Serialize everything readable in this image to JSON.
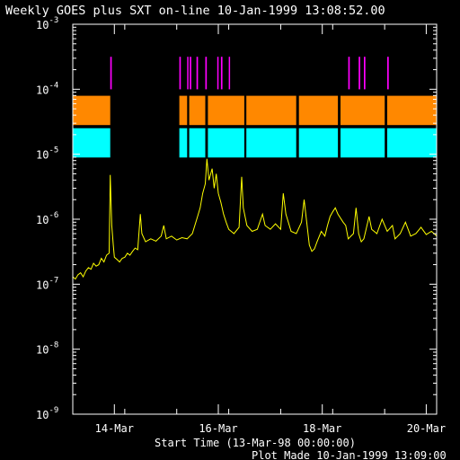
{
  "window": {
    "title": "Weekly GOES plus SXT on-line 10-Jan-1999 13:08:52.00",
    "start_time_label": "Start Time (13-Mar-98 00:00:00)",
    "plot_made_label": "Plot Made 10-Jan-1999 13:09:00"
  },
  "colors": {
    "background": "#000000",
    "axes": "#ffffff",
    "goes_flux": "#ffff00",
    "sxt_magenta": "#ff00ff",
    "sxt_orange": "#ff8800",
    "sxt_cyan": "#00ffff"
  },
  "chart_data": {
    "type": "line",
    "title": "Weekly GOES plus SXT on-line 10-Jan-1999 13:08:52.00",
    "xlabel": "Start Time (13-Mar-98 00:00:00)",
    "ylabel": "",
    "x_unit": "days since 13-Mar-98 00:00",
    "xlim": [
      0,
      7
    ],
    "ylim": [
      1e-09,
      0.001
    ],
    "y_scale": "log",
    "grid": false,
    "y_ticks": [
      {
        "value": 1e-09,
        "base": "10",
        "exp": "-9"
      },
      {
        "value": 1e-08,
        "base": "10",
        "exp": "-8"
      },
      {
        "value": 1e-07,
        "base": "10",
        "exp": "-7"
      },
      {
        "value": 1e-06,
        "base": "10",
        "exp": "-6"
      },
      {
        "value": 1e-05,
        "base": "10",
        "exp": "-5"
      },
      {
        "value": 0.0001,
        "base": "10",
        "exp": "-4"
      },
      {
        "value": 0.001,
        "base": "10",
        "exp": "-3"
      }
    ],
    "x_ticks": [
      {
        "value": 0.8,
        "label": "14-Mar"
      },
      {
        "value": 2.8,
        "label": "16-Mar"
      },
      {
        "value": 4.8,
        "label": "18-Mar"
      },
      {
        "value": 6.8,
        "label": "20-Mar"
      }
    ],
    "series": [
      {
        "color": "#ffff00",
        "points": [
          [
            0.0,
            1.3e-07
          ],
          [
            0.05,
            1.2e-07
          ],
          [
            0.1,
            1.4e-07
          ],
          [
            0.15,
            1.5e-07
          ],
          [
            0.2,
            1.3e-07
          ],
          [
            0.25,
            1.6e-07
          ],
          [
            0.3,
            1.8e-07
          ],
          [
            0.35,
            1.7e-07
          ],
          [
            0.4,
            2.1e-07
          ],
          [
            0.45,
            1.9e-07
          ],
          [
            0.5,
            2e-07
          ],
          [
            0.55,
            2.5e-07
          ],
          [
            0.6,
            2.2e-07
          ],
          [
            0.65,
            2.8e-07
          ],
          [
            0.7,
            3e-07
          ],
          [
            0.72,
            4.8e-06
          ],
          [
            0.75,
            8e-07
          ],
          [
            0.78,
            4e-07
          ],
          [
            0.8,
            2.6e-07
          ],
          [
            0.85,
            2.4e-07
          ],
          [
            0.9,
            2.2e-07
          ],
          [
            0.95,
            2.5e-07
          ],
          [
            1.0,
            2.6e-07
          ],
          [
            1.05,
            3e-07
          ],
          [
            1.1,
            2.8e-07
          ],
          [
            1.15,
            3.2e-07
          ],
          [
            1.2,
            3.6e-07
          ],
          [
            1.25,
            3.4e-07
          ],
          [
            1.3,
            1.2e-06
          ],
          [
            1.33,
            6e-07
          ],
          [
            1.4,
            4.5e-07
          ],
          [
            1.5,
            5e-07
          ],
          [
            1.6,
            4.6e-07
          ],
          [
            1.7,
            5.5e-07
          ],
          [
            1.75,
            8e-07
          ],
          [
            1.8,
            5e-07
          ],
          [
            1.9,
            5.5e-07
          ],
          [
            2.0,
            4.8e-07
          ],
          [
            2.1,
            5.2e-07
          ],
          [
            2.2,
            5e-07
          ],
          [
            2.3,
            6e-07
          ],
          [
            2.4,
            1.1e-06
          ],
          [
            2.45,
            1.5e-06
          ],
          [
            2.5,
            2.5e-06
          ],
          [
            2.55,
            3.5e-06
          ],
          [
            2.58,
            8.5e-06
          ],
          [
            2.62,
            4e-06
          ],
          [
            2.68,
            6e-06
          ],
          [
            2.72,
            3e-06
          ],
          [
            2.76,
            5e-06
          ],
          [
            2.8,
            2.5e-06
          ],
          [
            2.85,
            1.8e-06
          ],
          [
            2.9,
            1.2e-06
          ],
          [
            2.95,
            9e-07
          ],
          [
            3.0,
            7e-07
          ],
          [
            3.1,
            6e-07
          ],
          [
            3.2,
            7.5e-07
          ],
          [
            3.25,
            4.5e-06
          ],
          [
            3.28,
            1.5e-06
          ],
          [
            3.35,
            8e-07
          ],
          [
            3.45,
            6.5e-07
          ],
          [
            3.55,
            7e-07
          ],
          [
            3.65,
            1.2e-06
          ],
          [
            3.7,
            8e-07
          ],
          [
            3.8,
            7e-07
          ],
          [
            3.9,
            8.5e-07
          ],
          [
            4.0,
            7e-07
          ],
          [
            4.05,
            2.5e-06
          ],
          [
            4.1,
            1.2e-06
          ],
          [
            4.2,
            6.5e-07
          ],
          [
            4.3,
            6e-07
          ],
          [
            4.4,
            9e-07
          ],
          [
            4.45,
            2e-06
          ],
          [
            4.5,
            9e-07
          ],
          [
            4.55,
            4e-07
          ],
          [
            4.6,
            3.2e-07
          ],
          [
            4.65,
            3.5e-07
          ],
          [
            4.7,
            4.5e-07
          ],
          [
            4.78,
            6.5e-07
          ],
          [
            4.85,
            5.5e-07
          ],
          [
            4.9,
            8e-07
          ],
          [
            4.95,
            1.1e-06
          ],
          [
            5.0,
            1.3e-06
          ],
          [
            5.05,
            1.5e-06
          ],
          [
            5.1,
            1.2e-06
          ],
          [
            5.2,
            9e-07
          ],
          [
            5.25,
            8e-07
          ],
          [
            5.3,
            5e-07
          ],
          [
            5.4,
            6e-07
          ],
          [
            5.45,
            1.5e-06
          ],
          [
            5.5,
            6e-07
          ],
          [
            5.55,
            4.5e-07
          ],
          [
            5.6,
            5e-07
          ],
          [
            5.7,
            1.1e-06
          ],
          [
            5.75,
            7e-07
          ],
          [
            5.85,
            6e-07
          ],
          [
            5.95,
            1e-06
          ],
          [
            6.05,
            6.5e-07
          ],
          [
            6.15,
            8e-07
          ],
          [
            6.2,
            5e-07
          ],
          [
            6.3,
            6e-07
          ],
          [
            6.4,
            9e-07
          ],
          [
            6.5,
            5.5e-07
          ],
          [
            6.6,
            6e-07
          ],
          [
            6.7,
            7.5e-07
          ],
          [
            6.8,
            5.8e-07
          ],
          [
            6.9,
            6.5e-07
          ],
          [
            6.95,
            6e-07
          ],
          [
            7.0,
            5.5e-07
          ]
        ]
      }
    ],
    "bands": [
      {
        "color": "#ff00ff",
        "log_range": [
          -4.0,
          -3.5
        ],
        "intervals": [
          [
            0.72,
            0.75
          ],
          [
            2.05,
            2.08
          ],
          [
            2.2,
            2.22
          ],
          [
            2.25,
            2.28
          ],
          [
            2.38,
            2.41
          ],
          [
            2.55,
            2.58
          ],
          [
            2.78,
            2.8
          ],
          [
            2.85,
            2.88
          ],
          [
            3.0,
            3.02
          ],
          [
            5.3,
            5.33
          ],
          [
            5.5,
            5.53
          ],
          [
            5.6,
            5.63
          ],
          [
            6.05,
            6.08
          ]
        ]
      },
      {
        "color": "#ff8800",
        "log_range": [
          -4.55,
          -4.1
        ],
        "intervals": [
          [
            0.0,
            0.72
          ],
          [
            2.05,
            2.2
          ],
          [
            2.24,
            2.55
          ],
          [
            2.6,
            3.3
          ],
          [
            3.34,
            4.3
          ],
          [
            4.35,
            5.1
          ],
          [
            5.15,
            6.0
          ],
          [
            6.05,
            7.0
          ]
        ]
      },
      {
        "color": "#00ffff",
        "log_range": [
          -5.05,
          -4.6
        ],
        "intervals": [
          [
            0.0,
            0.72
          ],
          [
            2.05,
            2.2
          ],
          [
            2.24,
            2.55
          ],
          [
            2.6,
            3.3
          ],
          [
            3.34,
            4.3
          ],
          [
            4.35,
            5.1
          ],
          [
            5.15,
            6.0
          ],
          [
            6.05,
            7.0
          ]
        ]
      }
    ]
  }
}
